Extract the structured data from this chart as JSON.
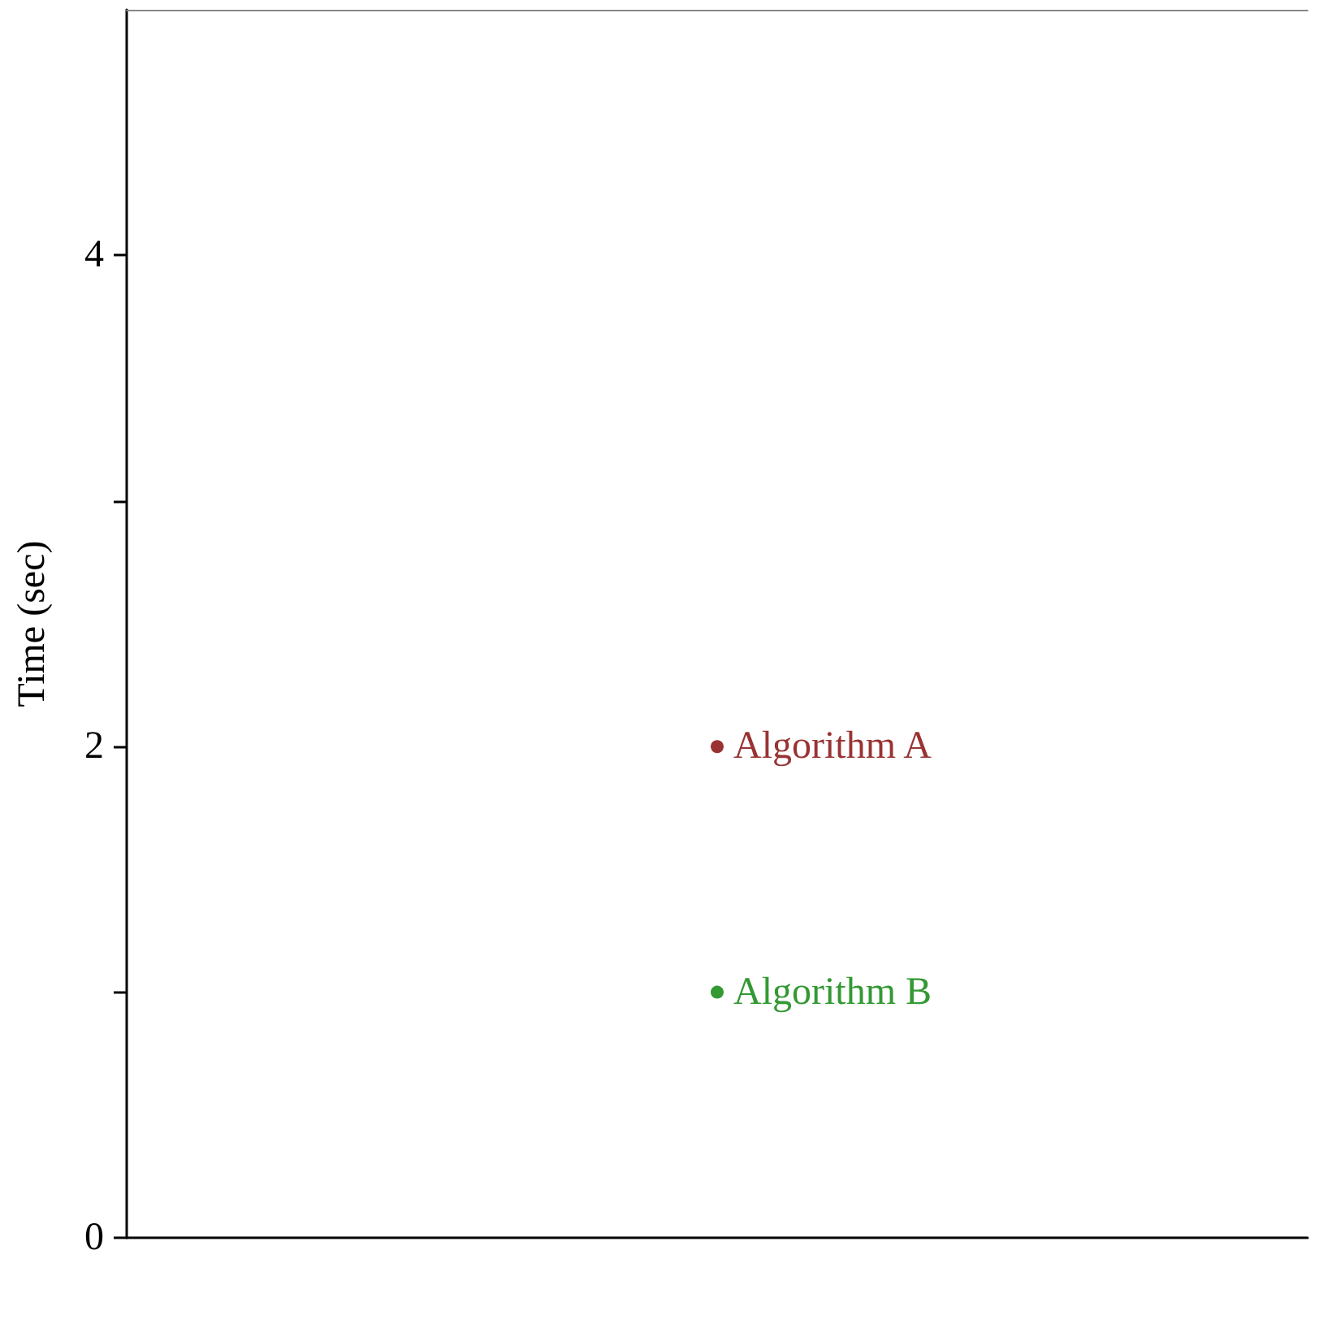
{
  "chart_data": {
    "type": "scatter",
    "ylabel": "Time (sec)",
    "categories": [
      null
    ],
    "series": [
      {
        "name": "Algorithm A",
        "color": "#800000",
        "values": [
          2
        ]
      },
      {
        "name": "Algorithm B",
        "color": "#008000",
        "values": [
          1
        ]
      }
    ],
    "ylim": [
      0,
      5
    ],
    "yticks": [
      0,
      {
        "value": 1,
        "label": null
      },
      2,
      {
        "value": 3,
        "label": null
      },
      4
    ],
    "grid": false,
    "legend": false,
    "marker": "circle",
    "tick_labels": "y"
  }
}
